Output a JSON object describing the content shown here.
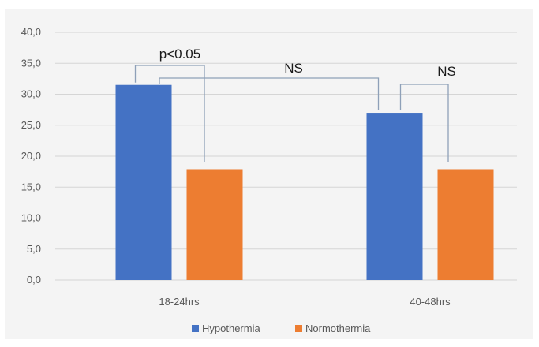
{
  "chart_data": {
    "type": "bar",
    "title": "",
    "xlabel": "",
    "ylabel": "",
    "ylim": [
      0,
      40
    ],
    "ytick_step": 5,
    "ytick_labels": [
      "0,0",
      "5,0",
      "10,0",
      "15,0",
      "20,0",
      "25,0",
      "30,0",
      "35,0",
      "40,0"
    ],
    "grid": true,
    "legend_position": "bottom",
    "categories": [
      "18-24hrs",
      "40-48hrs"
    ],
    "series": [
      {
        "name": "Hypothermia",
        "color": "#4472c4",
        "values": [
          31.5,
          27.0
        ]
      },
      {
        "name": "Normothermia",
        "color": "#ed7d31",
        "values": [
          17.9,
          17.9
        ]
      }
    ],
    "annotations": [
      {
        "label": "p<0.05",
        "compares": "18-24hrs Hypothermia vs Normothermia"
      },
      {
        "label": "NS",
        "compares": "18-24hrs Hypothermia vs 40-48hrs Hypothermia"
      },
      {
        "label": "NS",
        "compares": "40-48hrs Hypothermia vs Normothermia"
      }
    ]
  },
  "colors": {
    "background": "#ffffff",
    "plot_background": "#f4f4f4",
    "gridline": "#d5d5d5",
    "text": "#595959",
    "bracket": "#8ea0b8"
  }
}
